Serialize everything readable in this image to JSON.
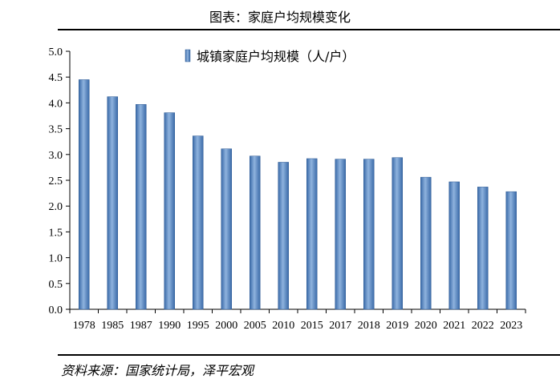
{
  "figure_title": "图表：家庭户均规模变化",
  "source": "资料来源：国家统计局，泽平宏观",
  "chart_data": {
    "type": "bar",
    "categories": [
      "1978",
      "1985",
      "1987",
      "1990",
      "1995",
      "2000",
      "2005",
      "2010",
      "2015",
      "2017",
      "2018",
      "2019",
      "2020",
      "2021",
      "2022",
      "2023"
    ],
    "series": [
      {
        "name": "城镇家庭户均规模（人/户）",
        "values": [
          4.45,
          4.12,
          3.97,
          3.81,
          3.36,
          3.11,
          2.97,
          2.85,
          2.92,
          2.91,
          2.91,
          2.94,
          2.56,
          2.47,
          2.37,
          2.28
        ]
      }
    ],
    "ylim": [
      0,
      5.0
    ],
    "yticks": [
      "0.0",
      "0.5",
      "1.0",
      "1.5",
      "2.0",
      "2.5",
      "3.0",
      "3.5",
      "4.0",
      "4.5",
      "5.0"
    ],
    "ytick_values": [
      0,
      0.5,
      1.0,
      1.5,
      2.0,
      2.5,
      3.0,
      3.5,
      4.0,
      4.5,
      5.0
    ],
    "legend_position": "top-center",
    "grid": false,
    "bar_color": "#4f81bd"
  }
}
